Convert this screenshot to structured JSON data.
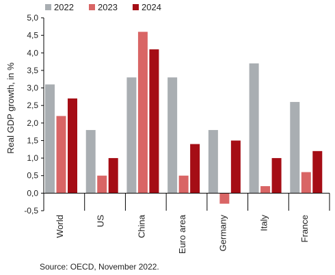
{
  "chart_data": {
    "type": "bar",
    "categories": [
      "World",
      "US",
      "China",
      "Euro area",
      "Germany",
      "Italy",
      "France"
    ],
    "series": [
      {
        "name": "2022",
        "color": "#a9aeb2",
        "values": [
          3.1,
          1.8,
          3.3,
          3.3,
          1.8,
          3.7,
          2.6
        ]
      },
      {
        "name": "2023",
        "color": "#d96565",
        "values": [
          2.2,
          0.5,
          4.6,
          0.5,
          -0.3,
          0.2,
          0.6
        ]
      },
      {
        "name": "2024",
        "color": "#a50d15",
        "values": [
          2.7,
          1.0,
          4.1,
          1.4,
          1.5,
          1.0,
          1.2
        ]
      }
    ],
    "ylabel": "Real GDP growth, in %",
    "ylim": [
      -0.5,
      5.0
    ],
    "yticks": [
      "-0,5",
      "0,0",
      "0,5",
      "1,0",
      "1,5",
      "2,0",
      "2,5",
      "3,0",
      "3,5",
      "4,0",
      "4,5",
      "5,0"
    ],
    "grid": false,
    "legend": "top-left",
    "source": "Source: OECD, November 2022."
  }
}
